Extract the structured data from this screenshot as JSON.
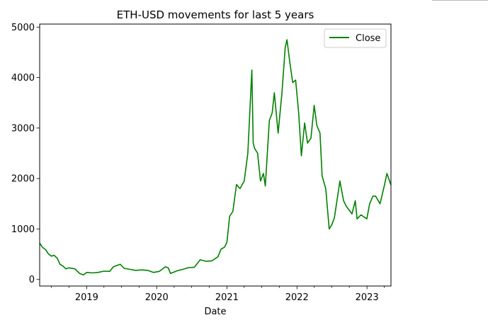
{
  "chart_data": {
    "type": "line",
    "title": "ETH-USD movements for last 5 years",
    "xlabel": "Date",
    "ylabel": "",
    "x_ticks": [
      "2019",
      "2020",
      "2021",
      "2022",
      "2023"
    ],
    "y_ticks": [
      "0",
      "1000",
      "2000",
      "3000",
      "4000",
      "5000"
    ],
    "xlim": [
      "2018-05-01",
      "2023-05-06"
    ],
    "ylim": [
      -130,
      5060
    ],
    "grid": false,
    "legend": "top-right",
    "series": [
      {
        "name": "Close",
        "color": "#008000",
        "x": [
          "2018-05-01",
          "2018-05-15",
          "2018-06-01",
          "2018-06-15",
          "2018-07-01",
          "2018-07-15",
          "2018-08-01",
          "2018-08-15",
          "2018-09-01",
          "2018-09-15",
          "2018-10-01",
          "2018-11-01",
          "2018-11-25",
          "2018-12-15",
          "2019-01-01",
          "2019-02-01",
          "2019-03-01",
          "2019-04-01",
          "2019-05-01",
          "2019-05-20",
          "2019-06-25",
          "2019-07-15",
          "2019-08-15",
          "2019-09-15",
          "2019-10-15",
          "2019-11-15",
          "2019-12-15",
          "2020-01-15",
          "2020-02-15",
          "2020-03-01",
          "2020-03-13",
          "2020-04-15",
          "2020-05-15",
          "2020-06-15",
          "2020-07-15",
          "2020-08-15",
          "2020-09-15",
          "2020-10-15",
          "2020-11-15",
          "2020-12-01",
          "2020-12-20",
          "2021-01-01",
          "2021-01-15",
          "2021-02-01",
          "2021-02-20",
          "2021-03-10",
          "2021-04-01",
          "2021-04-20",
          "2021-05-11",
          "2021-05-18",
          "2021-05-25",
          "2021-06-10",
          "2021-06-25",
          "2021-07-10",
          "2021-07-20",
          "2021-08-10",
          "2021-08-25",
          "2021-09-05",
          "2021-09-25",
          "2021-10-15",
          "2021-11-01",
          "2021-11-10",
          "2021-11-25",
          "2021-12-10",
          "2021-12-25",
          "2022-01-10",
          "2022-01-24",
          "2022-02-10",
          "2022-02-25",
          "2022-03-15",
          "2022-04-01",
          "2022-04-15",
          "2022-05-01",
          "2022-05-12",
          "2022-05-31",
          "2022-06-18",
          "2022-07-01",
          "2022-07-15",
          "2022-08-01",
          "2022-08-13",
          "2022-09-01",
          "2022-09-15",
          "2022-10-15",
          "2022-11-01",
          "2022-11-10",
          "2022-12-01",
          "2022-12-31",
          "2023-01-15",
          "2023-02-01",
          "2023-02-15",
          "2023-03-10",
          "2023-04-01",
          "2023-04-15",
          "2023-05-06"
        ],
        "y": [
          720,
          640,
          590,
          510,
          460,
          480,
          420,
          300,
          260,
          210,
          230,
          210,
          120,
          90,
          140,
          130,
          140,
          165,
          160,
          250,
          300,
          220,
          200,
          180,
          190,
          180,
          140,
          160,
          250,
          230,
          120,
          170,
          200,
          235,
          240,
          390,
          360,
          370,
          450,
          600,
          640,
          740,
          1250,
          1350,
          1880,
          1800,
          1950,
          2500,
          4150,
          2700,
          2600,
          2500,
          1950,
          2100,
          1850,
          3150,
          3300,
          3700,
          2900,
          3700,
          4600,
          4750,
          4300,
          3900,
          3950,
          3300,
          2450,
          3100,
          2700,
          2800,
          3450,
          3050,
          2900,
          2050,
          1800,
          1000,
          1080,
          1220,
          1650,
          1950,
          1560,
          1450,
          1300,
          1560,
          1200,
          1280,
          1200,
          1500,
          1650,
          1650,
          1500,
          1850,
          2100,
          1870
        ]
      }
    ]
  }
}
